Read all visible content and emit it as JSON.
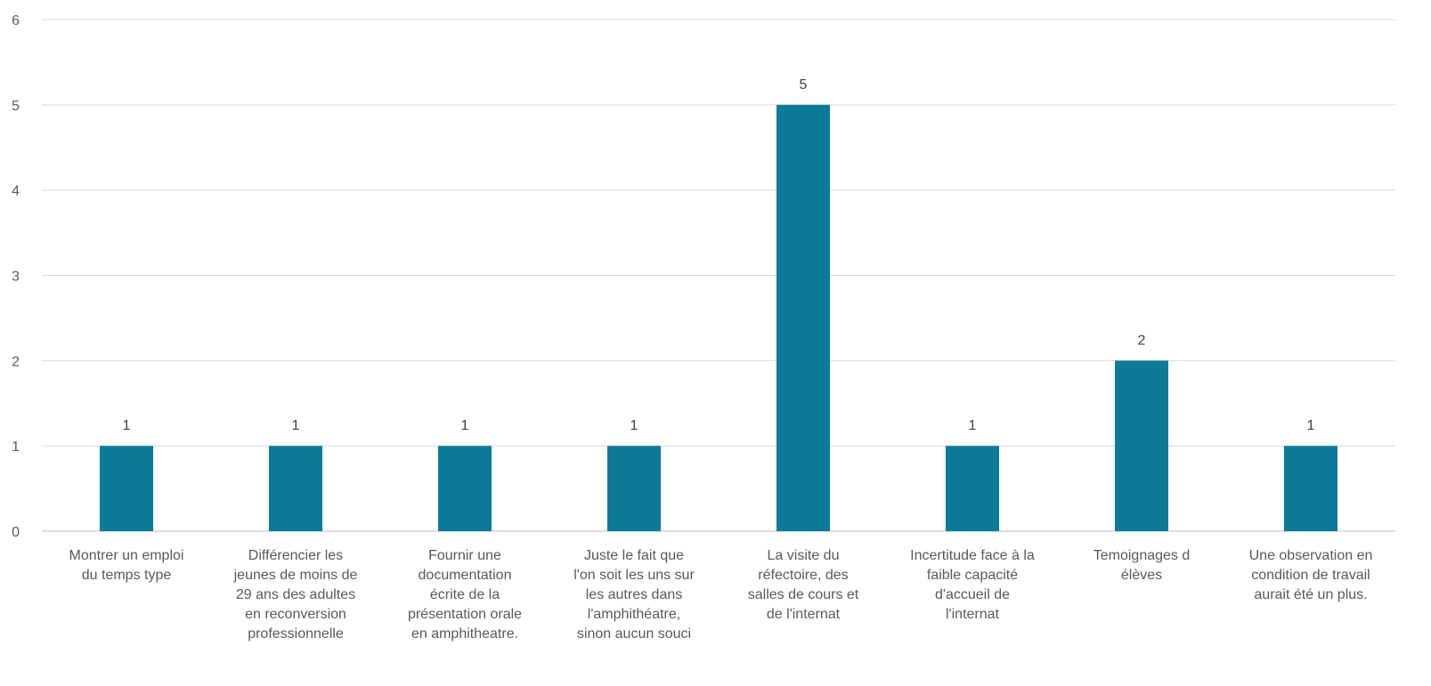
{
  "chart_data": {
    "type": "bar",
    "title": "",
    "xlabel": "",
    "ylabel": "",
    "ylim": [
      0,
      6
    ],
    "y_ticks": [
      0,
      1,
      2,
      3,
      4,
      5,
      6
    ],
    "grid": true,
    "legend": "none",
    "bar_color": "#0E7A99",
    "categories": [
      "Montrer un emploi\ndu temps type",
      "Différencier les\njeunes de moins de\n29 ans des adultes\nen reconversion\nprofessionnelle",
      "Fournir une\ndocumentation\nécrite de la\nprésentation orale\nen amphitheatre.",
      "Juste le fait que\nl'on soit les uns sur\nles autres dans\nl'amphithéatre,\nsinon aucun souci",
      "La visite du\nréfectoire, des\nsalles de cours et\nde l'internat",
      "Incertitude face à la\nfaible capacité\nd'accueil de\nl'internat",
      "Temoignages d\nélèves",
      "Une observation en\ncondition de travail\naurait été un plus."
    ],
    "values": [
      1,
      1,
      1,
      1,
      5,
      1,
      2,
      1
    ],
    "data_labels": [
      "1",
      "1",
      "1",
      "1",
      "5",
      "1",
      "2",
      "1"
    ]
  }
}
